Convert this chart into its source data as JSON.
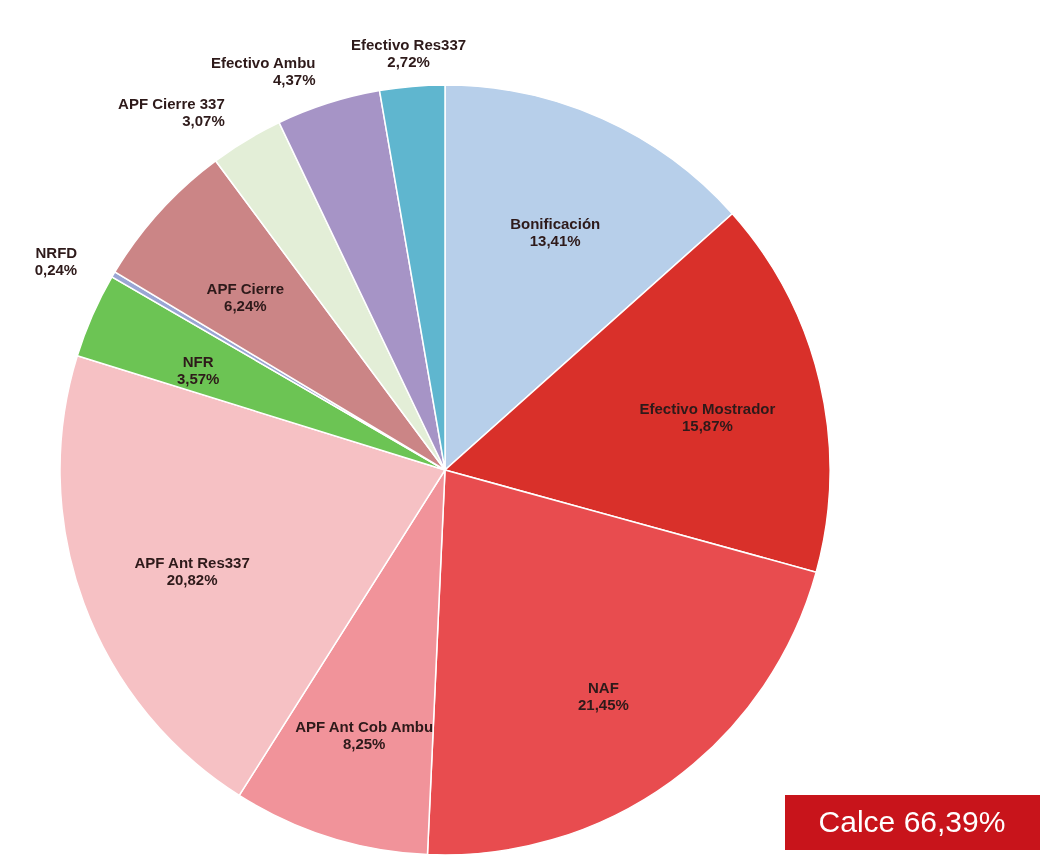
{
  "chart_data": {
    "type": "pie",
    "categories": [
      "Bonificación",
      "Efectivo Mostrador",
      "NAF",
      "APF Ant Cob Ambu",
      "APF Ant Res337",
      "NFR",
      "NRFD",
      "APF Cierre",
      "APF Cierre 337",
      "Efectivo Ambu",
      "Efectivo Res337"
    ],
    "values": [
      13.41,
      15.87,
      21.45,
      8.25,
      20.82,
      3.57,
      0.24,
      6.24,
      3.07,
      4.37,
      2.72
    ],
    "value_labels": [
      "13,41%",
      "15,87%",
      "21,45%",
      "8,25%",
      "20,82%",
      "3,57%",
      "0,24%",
      "6,24%",
      "3,07%",
      "4,37%",
      "2,72%"
    ],
    "colors": [
      "#b7cfea",
      "#d9302a",
      "#e84c4f",
      "#f1939a",
      "#f6c1c4",
      "#6cc454",
      "#9aa6d4",
      "#cb8586",
      "#e3eed7",
      "#a694c6",
      "#5fb6cf"
    ],
    "annotations": [
      "Calce 66,39%"
    ],
    "legend": false
  }
}
